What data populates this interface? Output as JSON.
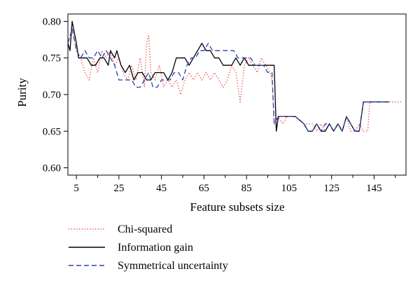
{
  "chart_data": {
    "type": "line",
    "xlabel": "Feature subsets size",
    "ylabel": "Purity",
    "xlim": [
      1,
      160
    ],
    "ylim": [
      0.59,
      0.81
    ],
    "xticks": [
      5,
      25,
      45,
      65,
      85,
      105,
      125,
      145
    ],
    "yticks": [
      0.6,
      0.65,
      0.7,
      0.75,
      0.8
    ],
    "ytick_labels": [
      "0.60",
      "0.65",
      "0.70",
      "0.75",
      "0.80"
    ],
    "grid": false,
    "legend_position": "bottom-left",
    "series": [
      {
        "name": "Chi-squared",
        "color": "#e8413c",
        "dash": "dotted",
        "points": [
          [
            1,
            0.77
          ],
          [
            3,
            0.79
          ],
          [
            5,
            0.76
          ],
          [
            7,
            0.75
          ],
          [
            9,
            0.73
          ],
          [
            11,
            0.72
          ],
          [
            13,
            0.75
          ],
          [
            15,
            0.73
          ],
          [
            17,
            0.76
          ],
          [
            19,
            0.75
          ],
          [
            21,
            0.76
          ],
          [
            23,
            0.74
          ],
          [
            25,
            0.75
          ],
          [
            27,
            0.73
          ],
          [
            29,
            0.72
          ],
          [
            31,
            0.74
          ],
          [
            33,
            0.72
          ],
          [
            35,
            0.75
          ],
          [
            37,
            0.71
          ],
          [
            38,
            0.77
          ],
          [
            39,
            0.78
          ],
          [
            40,
            0.73
          ],
          [
            42,
            0.72
          ],
          [
            44,
            0.74
          ],
          [
            46,
            0.71
          ],
          [
            48,
            0.72
          ],
          [
            50,
            0.71
          ],
          [
            52,
            0.72
          ],
          [
            54,
            0.7
          ],
          [
            56,
            0.72
          ],
          [
            58,
            0.73
          ],
          [
            60,
            0.72
          ],
          [
            62,
            0.73
          ],
          [
            64,
            0.72
          ],
          [
            66,
            0.73
          ],
          [
            68,
            0.72
          ],
          [
            70,
            0.73
          ],
          [
            72,
            0.72
          ],
          [
            74,
            0.71
          ],
          [
            76,
            0.72
          ],
          [
            78,
            0.74
          ],
          [
            80,
            0.73
          ],
          [
            82,
            0.69
          ],
          [
            84,
            0.74
          ],
          [
            86,
            0.75
          ],
          [
            88,
            0.74
          ],
          [
            90,
            0.73
          ],
          [
            92,
            0.75
          ],
          [
            94,
            0.74
          ],
          [
            96,
            0.73
          ],
          [
            97,
            0.72
          ],
          [
            98,
            0.66
          ],
          [
            100,
            0.67
          ],
          [
            102,
            0.66
          ],
          [
            104,
            0.67
          ],
          [
            108,
            0.67
          ],
          [
            112,
            0.66
          ],
          [
            116,
            0.66
          ],
          [
            118,
            0.65
          ],
          [
            120,
            0.66
          ],
          [
            122,
            0.65
          ],
          [
            124,
            0.66
          ],
          [
            126,
            0.65
          ],
          [
            128,
            0.66
          ],
          [
            130,
            0.65
          ],
          [
            132,
            0.67
          ],
          [
            134,
            0.65
          ],
          [
            136,
            0.65
          ],
          [
            138,
            0.66
          ],
          [
            140,
            0.65
          ],
          [
            142,
            0.65
          ],
          [
            143,
            0.69
          ],
          [
            158,
            0.69
          ]
        ]
      },
      {
        "name": "Information gain",
        "color": "#000000",
        "dash": "solid",
        "points": [
          [
            1,
            0.77
          ],
          [
            2,
            0.76
          ],
          [
            3,
            0.8
          ],
          [
            5,
            0.77
          ],
          [
            6,
            0.75
          ],
          [
            8,
            0.75
          ],
          [
            10,
            0.75
          ],
          [
            12,
            0.74
          ],
          [
            14,
            0.74
          ],
          [
            16,
            0.75
          ],
          [
            18,
            0.75
          ],
          [
            20,
            0.74
          ],
          [
            21,
            0.76
          ],
          [
            23,
            0.75
          ],
          [
            24,
            0.76
          ],
          [
            26,
            0.74
          ],
          [
            28,
            0.73
          ],
          [
            30,
            0.74
          ],
          [
            32,
            0.72
          ],
          [
            34,
            0.73
          ],
          [
            36,
            0.73
          ],
          [
            38,
            0.72
          ],
          [
            40,
            0.72
          ],
          [
            42,
            0.73
          ],
          [
            44,
            0.73
          ],
          [
            46,
            0.73
          ],
          [
            48,
            0.72
          ],
          [
            50,
            0.73
          ],
          [
            52,
            0.75
          ],
          [
            54,
            0.75
          ],
          [
            56,
            0.75
          ],
          [
            58,
            0.74
          ],
          [
            60,
            0.75
          ],
          [
            62,
            0.76
          ],
          [
            64,
            0.77
          ],
          [
            66,
            0.76
          ],
          [
            68,
            0.76
          ],
          [
            70,
            0.75
          ],
          [
            72,
            0.75
          ],
          [
            74,
            0.74
          ],
          [
            76,
            0.74
          ],
          [
            78,
            0.74
          ],
          [
            80,
            0.75
          ],
          [
            82,
            0.74
          ],
          [
            84,
            0.75
          ],
          [
            86,
            0.74
          ],
          [
            88,
            0.74
          ],
          [
            90,
            0.74
          ],
          [
            92,
            0.74
          ],
          [
            94,
            0.74
          ],
          [
            96,
            0.74
          ],
          [
            98,
            0.74
          ],
          [
            99,
            0.65
          ],
          [
            100,
            0.67
          ],
          [
            102,
            0.67
          ],
          [
            104,
            0.67
          ],
          [
            108,
            0.67
          ],
          [
            112,
            0.66
          ],
          [
            114,
            0.65
          ],
          [
            116,
            0.65
          ],
          [
            118,
            0.66
          ],
          [
            120,
            0.65
          ],
          [
            122,
            0.65
          ],
          [
            124,
            0.66
          ],
          [
            126,
            0.65
          ],
          [
            128,
            0.66
          ],
          [
            130,
            0.65
          ],
          [
            132,
            0.67
          ],
          [
            134,
            0.66
          ],
          [
            136,
            0.65
          ],
          [
            138,
            0.65
          ],
          [
            140,
            0.69
          ],
          [
            152,
            0.69
          ]
        ]
      },
      {
        "name": "Symmetrical uncertainty",
        "color": "#2b3fb6",
        "dash": "dashed",
        "points": [
          [
            1,
            0.77
          ],
          [
            3,
            0.79
          ],
          [
            5,
            0.76
          ],
          [
            7,
            0.75
          ],
          [
            9,
            0.76
          ],
          [
            11,
            0.75
          ],
          [
            13,
            0.75
          ],
          [
            15,
            0.76
          ],
          [
            17,
            0.75
          ],
          [
            19,
            0.76
          ],
          [
            21,
            0.75
          ],
          [
            23,
            0.74
          ],
          [
            25,
            0.72
          ],
          [
            27,
            0.72
          ],
          [
            29,
            0.72
          ],
          [
            31,
            0.72
          ],
          [
            33,
            0.71
          ],
          [
            35,
            0.71
          ],
          [
            37,
            0.72
          ],
          [
            39,
            0.73
          ],
          [
            41,
            0.71
          ],
          [
            43,
            0.71
          ],
          [
            45,
            0.72
          ],
          [
            47,
            0.72
          ],
          [
            49,
            0.72
          ],
          [
            51,
            0.73
          ],
          [
            53,
            0.73
          ],
          [
            55,
            0.72
          ],
          [
            57,
            0.74
          ],
          [
            59,
            0.75
          ],
          [
            61,
            0.75
          ],
          [
            63,
            0.76
          ],
          [
            65,
            0.76
          ],
          [
            67,
            0.77
          ],
          [
            69,
            0.76
          ],
          [
            71,
            0.76
          ],
          [
            73,
            0.76
          ],
          [
            75,
            0.76
          ],
          [
            77,
            0.76
          ],
          [
            79,
            0.76
          ],
          [
            81,
            0.75
          ],
          [
            83,
            0.75
          ],
          [
            85,
            0.75
          ],
          [
            87,
            0.75
          ],
          [
            89,
            0.74
          ],
          [
            91,
            0.74
          ],
          [
            93,
            0.74
          ],
          [
            95,
            0.73
          ],
          [
            97,
            0.73
          ],
          [
            98,
            0.66
          ],
          [
            100,
            0.67
          ],
          [
            102,
            0.67
          ],
          [
            104,
            0.67
          ],
          [
            108,
            0.67
          ],
          [
            112,
            0.66
          ],
          [
            114,
            0.65
          ],
          [
            116,
            0.65
          ],
          [
            118,
            0.66
          ],
          [
            120,
            0.65
          ],
          [
            122,
            0.66
          ],
          [
            124,
            0.66
          ],
          [
            126,
            0.65
          ],
          [
            128,
            0.66
          ],
          [
            130,
            0.65
          ],
          [
            132,
            0.67
          ],
          [
            134,
            0.66
          ],
          [
            136,
            0.65
          ],
          [
            138,
            0.65
          ],
          [
            140,
            0.69
          ],
          [
            152,
            0.69
          ]
        ]
      }
    ]
  }
}
